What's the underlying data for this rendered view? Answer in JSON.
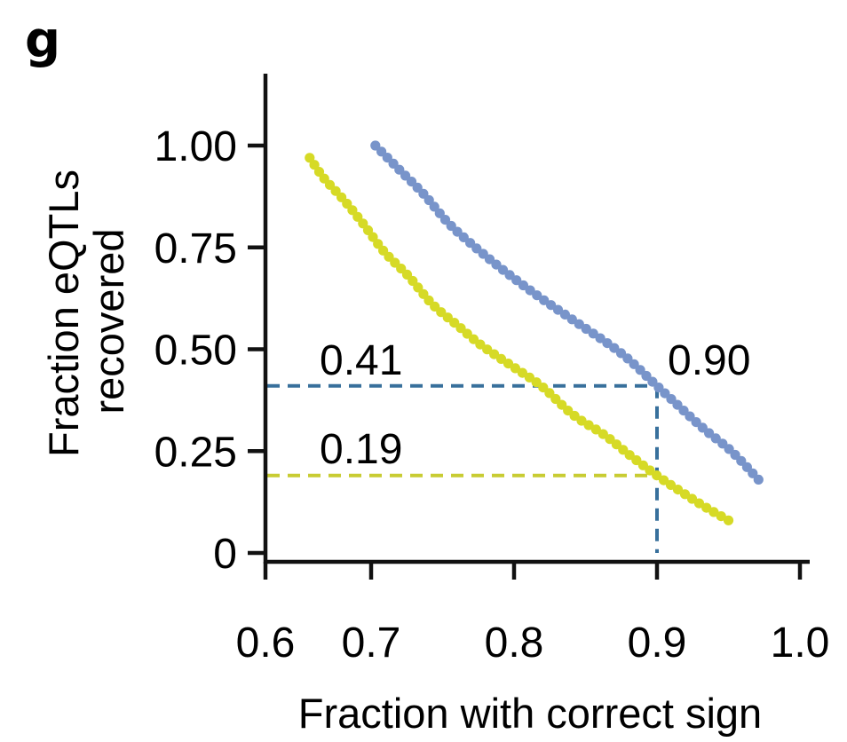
{
  "panel_label": "g",
  "chart_data": {
    "type": "scatter",
    "title": "",
    "xlabel": "Fraction with correct sign",
    "ylabel_lines": [
      "Fraction eQTLs",
      "recovered"
    ],
    "xlim": [
      0.6,
      1.0
    ],
    "ylim": [
      0,
      1.0
    ],
    "grid": false,
    "legend": "none",
    "x_ticks": {
      "values": [
        0.6,
        0.7,
        0.8,
        0.9,
        1.0
      ],
      "labels": [
        "0.6",
        "0.7",
        "0.8",
        "0.9",
        "1.0"
      ]
    },
    "y_ticks": {
      "values": [
        1.0,
        0.75,
        0.5,
        0.25,
        0
      ],
      "labels": [
        "1.00",
        "0.75",
        "0.50",
        "0.25",
        "0"
      ]
    },
    "series": [
      {
        "name": "blue-curve",
        "color": "#7894CA",
        "marker": "dot",
        "points": [
          [
            0.703,
            1.0
          ],
          [
            0.72,
            0.94
          ],
          [
            0.737,
            0.88
          ],
          [
            0.754,
            0.81
          ],
          [
            0.773,
            0.75
          ],
          [
            0.794,
            0.69
          ],
          [
            0.817,
            0.63
          ],
          [
            0.842,
            0.57
          ],
          [
            0.875,
            0.49
          ],
          [
            0.9,
            0.41
          ],
          [
            0.931,
            0.31
          ],
          [
            0.952,
            0.25
          ],
          [
            0.971,
            0.18
          ]
        ]
      },
      {
        "name": "yellow-curve",
        "color": "#D6DA26",
        "marker": "dot",
        "points": [
          [
            0.657,
            0.97
          ],
          [
            0.667,
            0.92
          ],
          [
            0.68,
            0.87
          ],
          [
            0.694,
            0.81
          ],
          [
            0.709,
            0.74
          ],
          [
            0.726,
            0.68
          ],
          [
            0.743,
            0.61
          ],
          [
            0.76,
            0.56
          ],
          [
            0.777,
            0.51
          ],
          [
            0.798,
            0.46
          ],
          [
            0.819,
            0.41
          ],
          [
            0.841,
            0.34
          ],
          [
            0.863,
            0.29
          ],
          [
            0.881,
            0.24
          ],
          [
            0.9,
            0.19
          ],
          [
            0.917,
            0.15
          ],
          [
            0.935,
            0.11
          ],
          [
            0.95,
            0.08
          ]
        ]
      }
    ],
    "reference_lines": [
      {
        "name": "blue-horizontal",
        "orientation": "horizontal",
        "y": 0.41,
        "x_from": 0.6,
        "x_to": 0.9,
        "color": "#38709C",
        "style": "dashed"
      },
      {
        "name": "blue-vertical",
        "orientation": "vertical",
        "x": 0.9,
        "y_from": 0,
        "y_to": 0.41,
        "color": "#38709C",
        "style": "dashed"
      },
      {
        "name": "yellow-horizontal",
        "orientation": "horizontal",
        "y": 0.19,
        "x_from": 0.6,
        "x_to": 0.897,
        "color": "#C8CC32",
        "style": "dashed"
      }
    ],
    "annotations": [
      {
        "name": "blue-recall-value",
        "text": "0.41"
      },
      {
        "name": "yellow-recall-value",
        "text": "0.19"
      },
      {
        "name": "sign-fraction-value",
        "text": "0.90"
      }
    ]
  }
}
